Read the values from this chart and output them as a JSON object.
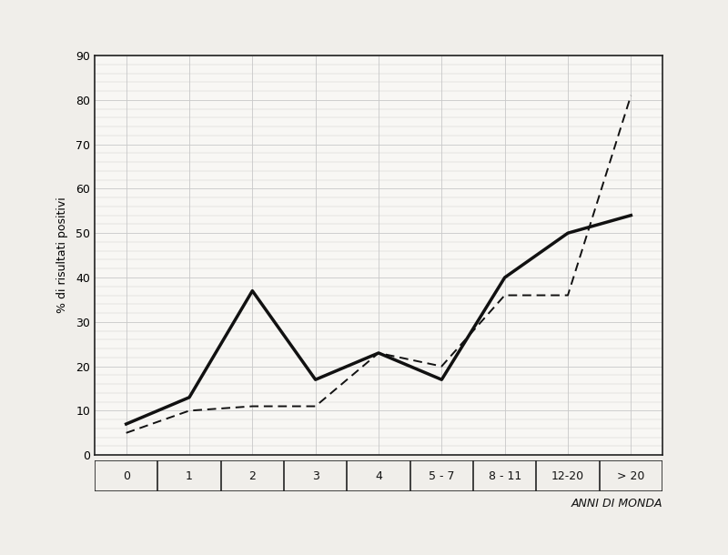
{
  "x_labels": [
    "0",
    "1",
    "2",
    "3",
    "4",
    "5 - 7",
    "8 - 11",
    "12-20",
    "> 20"
  ],
  "solid_line": [
    7,
    13,
    37,
    17,
    23,
    17,
    40,
    50,
    54
  ],
  "dashed_line": [
    5,
    10,
    11,
    11,
    23,
    20,
    36,
    36,
    81
  ],
  "ylabel": "% di risultati positivi",
  "xlabel": "ANNI DI MONDA",
  "ylim": [
    0,
    90
  ],
  "yticks": [
    0,
    10,
    20,
    30,
    40,
    50,
    60,
    70,
    80,
    90
  ],
  "figure_bg": "#f0eeea",
  "plot_bg": "#f8f7f4",
  "grid_color": "#c8c8c8",
  "line_color": "#111111",
  "axis_fontsize": 9,
  "tick_fontsize": 9,
  "ylabel_fontsize": 9,
  "xlabel_fontsize": 9
}
